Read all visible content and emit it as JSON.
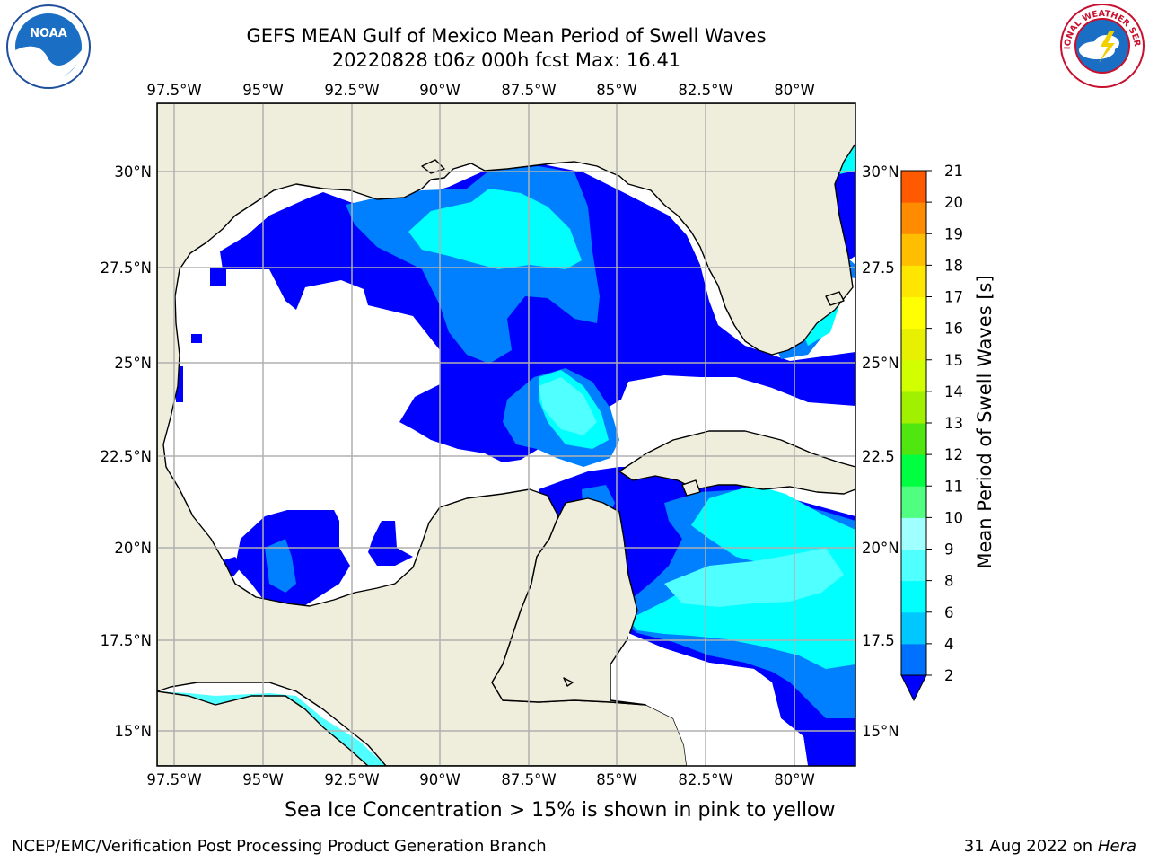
{
  "header": {
    "title_line1": "GEFS MEAN Gulf of Mexico Mean Period of Swell Waves",
    "title_line2": "20220828 t06z 000h fcst   Max: 16.41"
  },
  "logos": {
    "left": "noaa-logo",
    "right": "nws-logo",
    "nws_text": "NATIONAL WEATHER SERVICE"
  },
  "axes": {
    "lon_labels": [
      "97.5°W",
      "95°W",
      "92.5°W",
      "90°W",
      "87.5°W",
      "85°W",
      "82.5°W",
      "80°W"
    ],
    "lat_labels_left": [
      "30°N",
      "27.5°N",
      "25°N",
      "22.5°N",
      "20°N",
      "17.5°N",
      "15°N"
    ],
    "lat_labels_right": [
      "30°N",
      "27.5",
      "25°N",
      "22.5",
      "20°N",
      "17.5",
      "15°N"
    ]
  },
  "colorbar": {
    "label": "Mean Period of Swell Waves [s]",
    "ticks": [
      "2",
      "4",
      "6",
      "8",
      "9",
      "10",
      "11",
      "12",
      "13",
      "14",
      "15",
      "16",
      "17",
      "18",
      "19",
      "20",
      "21"
    ],
    "colors": [
      "#0070ff",
      "#00c8ff",
      "#00ffff",
      "#50ffff",
      "#a0ffff",
      "#50ff80",
      "#00ff40",
      "#50e610",
      "#a0f000",
      "#d2ff00",
      "#e6f000",
      "#ffff00",
      "#ffe600",
      "#ffbe00",
      "#ff8c00",
      "#ff5a00",
      "#ff0000"
    ],
    "extend_color": "#0000ff"
  },
  "palette": {
    "land": "#efeedc",
    "coast": "#000000",
    "grid": "#b0b0b0",
    "c2": "#0000ff",
    "c4": "#0080ff",
    "c6": "#00ffff",
    "c8": "#50ffff"
  },
  "footer": {
    "note": "Sea Ice Concentration > 15% is shown in pink to yellow",
    "credit_left": "NCEP/EMC/Verification Post Processing Product Generation Branch",
    "date": "31 Aug 2022 on",
    "host": "Hera"
  }
}
